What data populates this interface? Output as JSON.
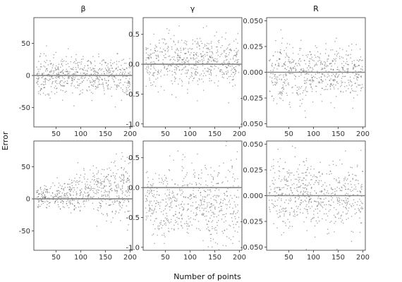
{
  "figure": {
    "xlabel": "Number of points",
    "ylabel": "Error"
  },
  "chart_data": [
    {
      "type": "scatter",
      "title": "β",
      "xlim": [
        5,
        205
      ],
      "ylim": [
        -80,
        90
      ],
      "xticks": [
        50,
        100,
        150,
        200
      ],
      "yticks": [
        -50,
        0,
        50
      ],
      "ytick_labels": [
        "-50",
        "0",
        "50"
      ],
      "reference_line_y": 0,
      "point_count": 600,
      "spread_start": 14,
      "spread_end": 14,
      "bias_start": 0,
      "bias_end": 0
    },
    {
      "type": "scatter",
      "title": "γ",
      "xlim": [
        5,
        205
      ],
      "ylim": [
        -1.05,
        0.78
      ],
      "xticks": [
        50,
        100,
        150,
        200
      ],
      "yticks": [
        -1.0,
        -0.5,
        0.0,
        0.5
      ],
      "ytick_labels": [
        "-1.0",
        "-0.5",
        "0.0",
        "0.5"
      ],
      "reference_line_y": 0,
      "point_count": 600,
      "spread_start": 0.22,
      "spread_end": 0.22,
      "bias_start": 0.05,
      "bias_end": 0.05
    },
    {
      "type": "scatter",
      "title": "R",
      "xlim": [
        5,
        205
      ],
      "ylim": [
        -0.053,
        0.053
      ],
      "xticks": [
        50,
        100,
        150,
        200
      ],
      "yticks": [
        -0.05,
        -0.025,
        0.0,
        0.025,
        0.05
      ],
      "ytick_labels": [
        "-0.050",
        "-0.025",
        "0.000",
        "0.025",
        "0.050"
      ],
      "reference_line_y": 0,
      "point_count": 600,
      "spread_start": 0.014,
      "spread_end": 0.012,
      "bias_start": 0,
      "bias_end": 0
    },
    {
      "type": "scatter",
      "title": "",
      "xlim": [
        5,
        205
      ],
      "ylim": [
        -80,
        90
      ],
      "xticks": [
        50,
        100,
        150,
        200
      ],
      "yticks": [
        -50,
        0,
        50
      ],
      "ytick_labels": [
        "-50",
        "0",
        "50"
      ],
      "reference_line_y": 0,
      "point_count": 600,
      "spread_start": 6,
      "spread_end": 25,
      "bias_start": 2,
      "bias_end": 18
    },
    {
      "type": "scatter",
      "title": "",
      "xlim": [
        5,
        205
      ],
      "ylim": [
        -1.05,
        0.78
      ],
      "xticks": [
        50,
        100,
        150,
        200
      ],
      "yticks": [
        -1.0,
        -0.5,
        0.0,
        0.5
      ],
      "ytick_labels": [
        "-1.0",
        "-0.5",
        "0.0",
        "0.5"
      ],
      "reference_line_y": 0,
      "point_count": 600,
      "spread_start": 0.28,
      "spread_end": 0.38,
      "bias_start": -0.3,
      "bias_end": -0.25
    },
    {
      "type": "scatter",
      "title": "",
      "xlim": [
        5,
        205
      ],
      "ylim": [
        -0.053,
        0.053
      ],
      "xticks": [
        50,
        100,
        150,
        200
      ],
      "yticks": [
        -0.05,
        -0.025,
        0.0,
        0.025,
        0.05
      ],
      "ytick_labels": [
        "-0.050",
        "-0.025",
        "0.000",
        "0.025",
        "0.050"
      ],
      "reference_line_y": 0,
      "point_count": 600,
      "spread_start": 0.017,
      "spread_end": 0.016,
      "bias_start": 0.002,
      "bias_end": 0
    }
  ]
}
